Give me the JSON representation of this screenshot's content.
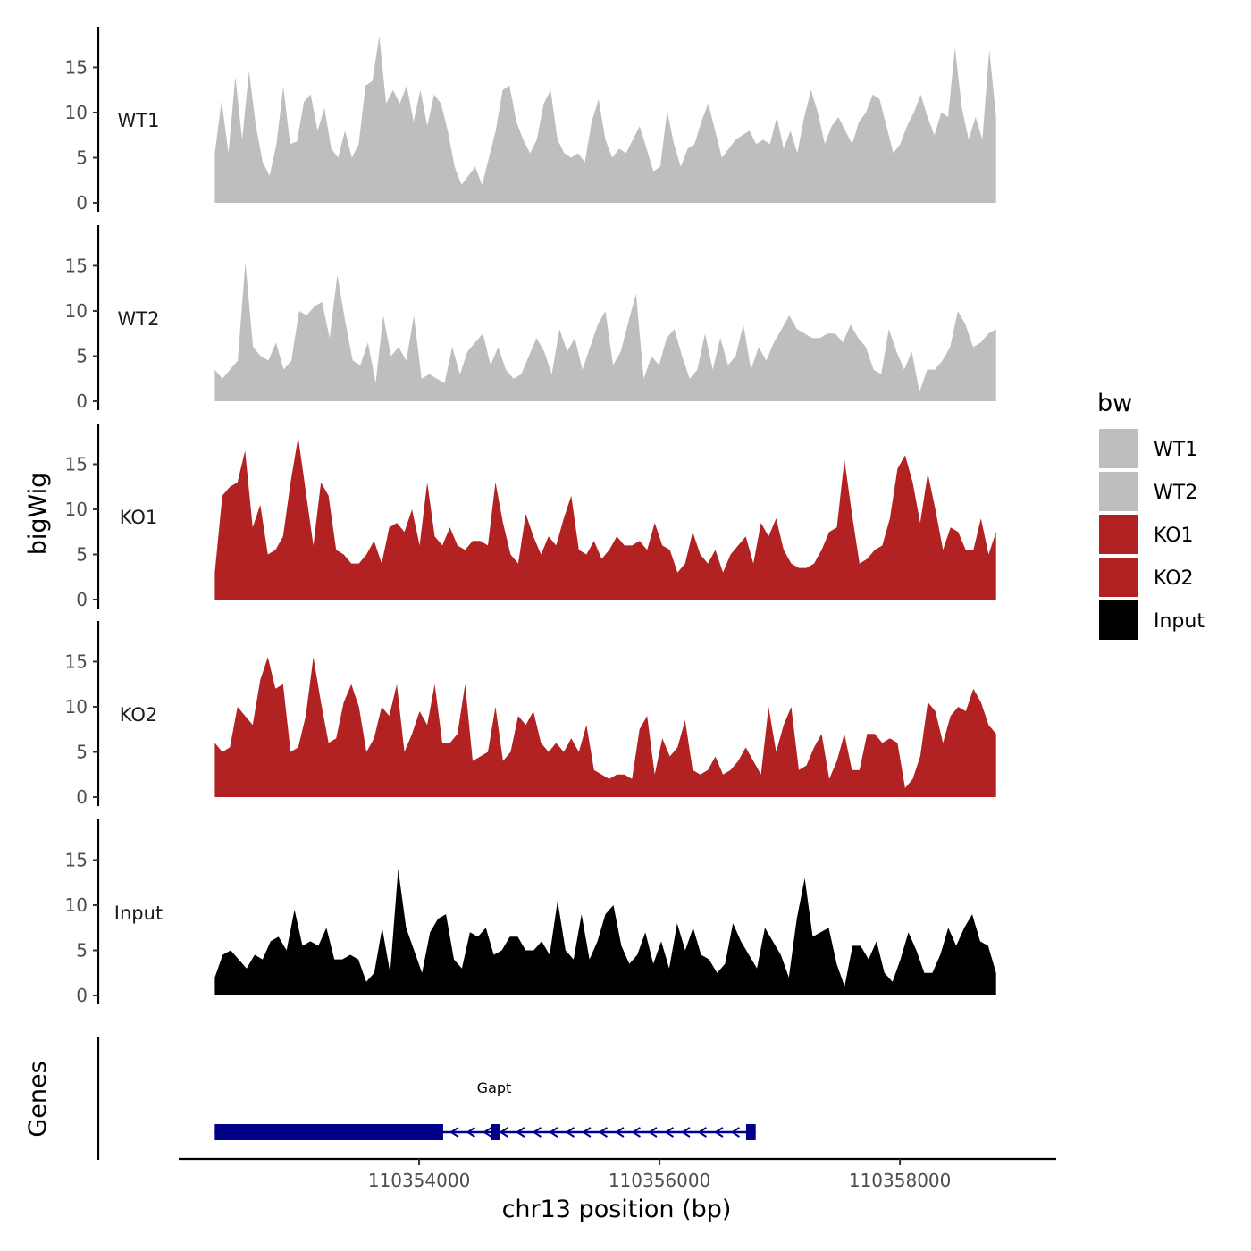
{
  "chart_data": {
    "type": "area",
    "ylabel": "bigWig",
    "xlabel": "chr13 position (bp)",
    "genes_label": "Genes",
    "xlim": [
      110352000,
      110359300
    ],
    "data_x_range": [
      110352300,
      110358800
    ],
    "ylim": [
      0,
      19.5
    ],
    "yticks": [
      "0",
      "5",
      "10",
      "15"
    ],
    "xticks": [
      {
        "value": 110354000,
        "label": "110354000"
      },
      {
        "value": 110356000,
        "label": "110356000"
      },
      {
        "value": 110358000,
        "label": "110358000"
      }
    ],
    "legend": {
      "title": "bw",
      "entries": [
        {
          "name": "WT1",
          "color": "#bebebe"
        },
        {
          "name": "WT2",
          "color": "#bebebe"
        },
        {
          "name": "KO1",
          "color": "#b22222"
        },
        {
          "name": "KO2",
          "color": "#b22222"
        },
        {
          "name": "Input",
          "color": "#000000"
        }
      ]
    },
    "series": [
      {
        "name": "WT1",
        "color": "#bebebe",
        "values": [
          5.5,
          11.3,
          5.5,
          14.0,
          7.0,
          14.6,
          8.5,
          4.5,
          3.0,
          6.5,
          12.9,
          6.5,
          6.8,
          11.2,
          12.0,
          8.0,
          10.5,
          6.0,
          5.0,
          8.0,
          5.0,
          6.5,
          13.0,
          13.5,
          18.5,
          11.0,
          12.5,
          11.0,
          13.0,
          9.0,
          12.5,
          8.5,
          12.0,
          11.0,
          8.0,
          4.0,
          2.0,
          3.0,
          4.0,
          2.0,
          5.0,
          8.0,
          12.5,
          13.0,
          9.0,
          7.0,
          5.5,
          7.0,
          11.0,
          12.5,
          7.0,
          5.5,
          5.0,
          5.5,
          4.5,
          9.0,
          11.5,
          7.0,
          5.0,
          6.0,
          5.5,
          7.0,
          8.5,
          6.0,
          3.5,
          4.0,
          10.2,
          6.5,
          4.0,
          6.0,
          6.5,
          9.0,
          11.0,
          8.0,
          5.0,
          6.0,
          7.0,
          7.5,
          8.0,
          6.5,
          7.0,
          6.5,
          9.5,
          6.0,
          8.0,
          5.5,
          9.5,
          12.5,
          10.0,
          6.5,
          8.5,
          9.5,
          8.0,
          6.5,
          9.0,
          10.0,
          12.0,
          11.5,
          8.5,
          5.5,
          6.5,
          8.5,
          10.0,
          12.0,
          9.5,
          7.5,
          10.0,
          9.5,
          17.2,
          10.5,
          7.0,
          9.5,
          7.0,
          17.0,
          9.5
        ]
      },
      {
        "name": "WT2",
        "color": "#bebebe",
        "values": [
          3.5,
          2.5,
          3.5,
          4.5,
          15.4,
          6.0,
          5.0,
          4.5,
          6.5,
          3.5,
          4.5,
          10.0,
          9.5,
          10.5,
          11.0,
          7.0,
          14.0,
          9.0,
          4.5,
          4.0,
          6.5,
          2.0,
          9.5,
          5.0,
          6.0,
          4.5,
          9.5,
          2.5,
          3.0,
          2.5,
          2.0,
          6.0,
          3.0,
          5.5,
          6.5,
          7.5,
          4.0,
          6.0,
          3.5,
          2.5,
          3.0,
          5.0,
          7.0,
          5.5,
          3.0,
          8.0,
          5.5,
          7.0,
          3.5,
          6.0,
          8.5,
          10.0,
          4.0,
          5.5,
          8.8,
          11.9,
          2.5,
          5.0,
          4.0,
          7.0,
          8.0,
          5.0,
          2.5,
          3.5,
          7.5,
          3.5,
          7.0,
          4.0,
          5.0,
          8.5,
          3.5,
          6.0,
          4.5,
          6.5,
          8.0,
          9.5,
          8.0,
          7.5,
          7.0,
          7.0,
          7.5,
          7.5,
          6.5,
          8.5,
          7.0,
          6.0,
          3.5,
          3.0,
          8.0,
          5.5,
          3.5,
          5.5,
          1.0,
          3.5,
          3.5,
          4.5,
          6.0,
          10.0,
          8.5,
          6.0,
          6.5,
          7.5,
          8.0
        ]
      },
      {
        "name": "KO1",
        "color": "#b22222",
        "values": [
          3.0,
          11.5,
          12.5,
          13.0,
          16.5,
          8.0,
          10.5,
          5.0,
          5.5,
          7.0,
          13.0,
          18.0,
          12.0,
          6.0,
          13.0,
          11.5,
          5.5,
          5.0,
          4.0,
          4.0,
          5.0,
          6.5,
          4.0,
          8.0,
          8.5,
          7.5,
          10.0,
          6.0,
          13.0,
          7.0,
          6.0,
          8.0,
          6.0,
          5.5,
          6.5,
          6.5,
          6.0,
          13.0,
          8.5,
          5.0,
          4.0,
          9.5,
          7.0,
          5.0,
          7.0,
          6.0,
          9.0,
          11.5,
          5.5,
          5.0,
          6.5,
          4.5,
          5.5,
          7.0,
          6.0,
          6.0,
          6.5,
          5.5,
          8.5,
          6.0,
          5.5,
          3.0,
          4.0,
          7.5,
          5.0,
          4.0,
          5.5,
          3.0,
          5.0,
          6.0,
          7.0,
          4.0,
          8.5,
          7.0,
          9.0,
          5.5,
          4.0,
          3.5,
          3.5,
          4.0,
          5.5,
          7.5,
          8.0,
          15.5,
          9.5,
          4.0,
          4.5,
          5.5,
          6.0,
          9.0,
          14.5,
          16.0,
          13.0,
          8.5,
          14.0,
          10.0,
          5.5,
          8.0,
          7.5,
          5.5,
          5.5,
          9.0,
          5.0,
          7.5
        ]
      },
      {
        "name": "KO2",
        "color": "#b22222",
        "values": [
          6.0,
          5.0,
          5.5,
          10.0,
          9.0,
          8.0,
          13.0,
          15.5,
          12.0,
          12.5,
          5.0,
          5.5,
          9.0,
          15.5,
          10.5,
          6.0,
          6.5,
          10.5,
          12.5,
          10.0,
          5.0,
          6.5,
          10.0,
          9.0,
          12.5,
          5.0,
          7.0,
          9.5,
          8.0,
          12.5,
          6.0,
          6.0,
          7.0,
          12.5,
          4.0,
          4.5,
          5.0,
          10.0,
          4.0,
          5.0,
          9.0,
          8.0,
          9.5,
          6.0,
          5.0,
          6.0,
          5.0,
          6.5,
          5.0,
          8.0,
          3.0,
          2.5,
          2.0,
          2.5,
          2.5,
          2.0,
          7.5,
          9.0,
          2.5,
          6.5,
          4.5,
          5.5,
          8.5,
          3.0,
          2.5,
          3.0,
          4.5,
          2.5,
          3.0,
          4.0,
          5.5,
          4.0,
          2.5,
          10.0,
          5.0,
          8.0,
          10.0,
          3.0,
          3.5,
          5.5,
          7.0,
          2.0,
          4.0,
          7.0,
          3.0,
          3.0,
          7.0,
          7.0,
          6.0,
          6.5,
          6.0,
          1.0,
          2.0,
          4.5,
          10.5,
          9.5,
          6.0,
          9.0,
          10.0,
          9.5,
          12.0,
          10.5,
          8.0,
          7.0
        ]
      },
      {
        "name": "Input",
        "color": "#000000",
        "values": [
          2.0,
          4.5,
          5.0,
          4.0,
          3.0,
          4.5,
          4.0,
          6.0,
          6.5,
          5.0,
          9.5,
          5.5,
          6.0,
          5.5,
          7.5,
          4.0,
          4.0,
          4.5,
          4.0,
          1.5,
          2.5,
          7.5,
          2.5,
          14.0,
          7.5,
          5.0,
          2.5,
          7.0,
          8.5,
          9.0,
          4.0,
          3.0,
          7.0,
          6.5,
          7.5,
          4.5,
          5.0,
          6.5,
          6.5,
          5.0,
          5.0,
          6.0,
          4.5,
          10.5,
          5.0,
          4.0,
          9.0,
          4.0,
          6.0,
          9.0,
          10.0,
          5.5,
          3.5,
          4.5,
          7.0,
          3.5,
          6.0,
          3.0,
          8.0,
          5.0,
          7.5,
          4.5,
          4.0,
          2.5,
          3.5,
          8.0,
          6.0,
          4.5,
          3.0,
          7.5,
          6.0,
          4.5,
          2.0,
          8.5,
          13.0,
          6.5,
          7.0,
          7.5,
          3.5,
          1.0,
          5.5,
          5.5,
          4.0,
          6.0,
          2.5,
          1.5,
          4.0,
          7.0,
          5.0,
          2.5,
          2.5,
          4.5,
          7.5,
          5.5,
          7.5,
          9.0,
          6.0,
          5.5,
          2.5
        ]
      }
    ],
    "gene": {
      "name": "Gapt",
      "strand": "-",
      "start": 110352300,
      "end": 110356800,
      "exons": [
        {
          "start": 110352300,
          "end": 110354200
        },
        {
          "start": 110354600,
          "end": 110354670
        },
        {
          "start": 110356720,
          "end": 110356800
        }
      ],
      "color": "#00008b"
    }
  }
}
